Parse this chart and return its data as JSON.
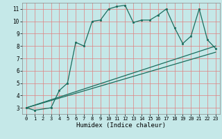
{
  "xlabel": "Humidex (Indice chaleur)",
  "bg_color": "#c5e8e8",
  "grid_color": "#e08080",
  "line_color": "#1a6e5e",
  "line1_x": [
    0,
    1,
    3,
    4,
    5,
    6,
    7,
    8,
    9,
    10,
    11,
    12,
    13,
    14,
    15,
    16,
    17,
    18,
    19,
    20,
    21,
    22,
    23
  ],
  "line1_y": [
    3.0,
    2.8,
    3.0,
    4.4,
    5.0,
    8.3,
    8.0,
    10.0,
    10.1,
    11.0,
    11.2,
    11.3,
    9.9,
    10.1,
    10.1,
    10.5,
    11.0,
    9.5,
    8.2,
    8.8,
    11.0,
    8.5,
    7.8
  ],
  "line2_x": [
    0,
    23
  ],
  "line2_y": [
    3.0,
    8.0
  ],
  "line3_x": [
    0,
    23
  ],
  "line3_y": [
    3.0,
    7.5
  ],
  "xlim": [
    -0.5,
    23.5
  ],
  "ylim": [
    2.5,
    11.5
  ],
  "yticks": [
    3,
    4,
    5,
    6,
    7,
    8,
    9,
    10,
    11
  ],
  "xticks": [
    0,
    1,
    2,
    3,
    4,
    5,
    6,
    7,
    8,
    9,
    10,
    11,
    12,
    13,
    14,
    15,
    16,
    17,
    18,
    19,
    20,
    21,
    22,
    23
  ]
}
